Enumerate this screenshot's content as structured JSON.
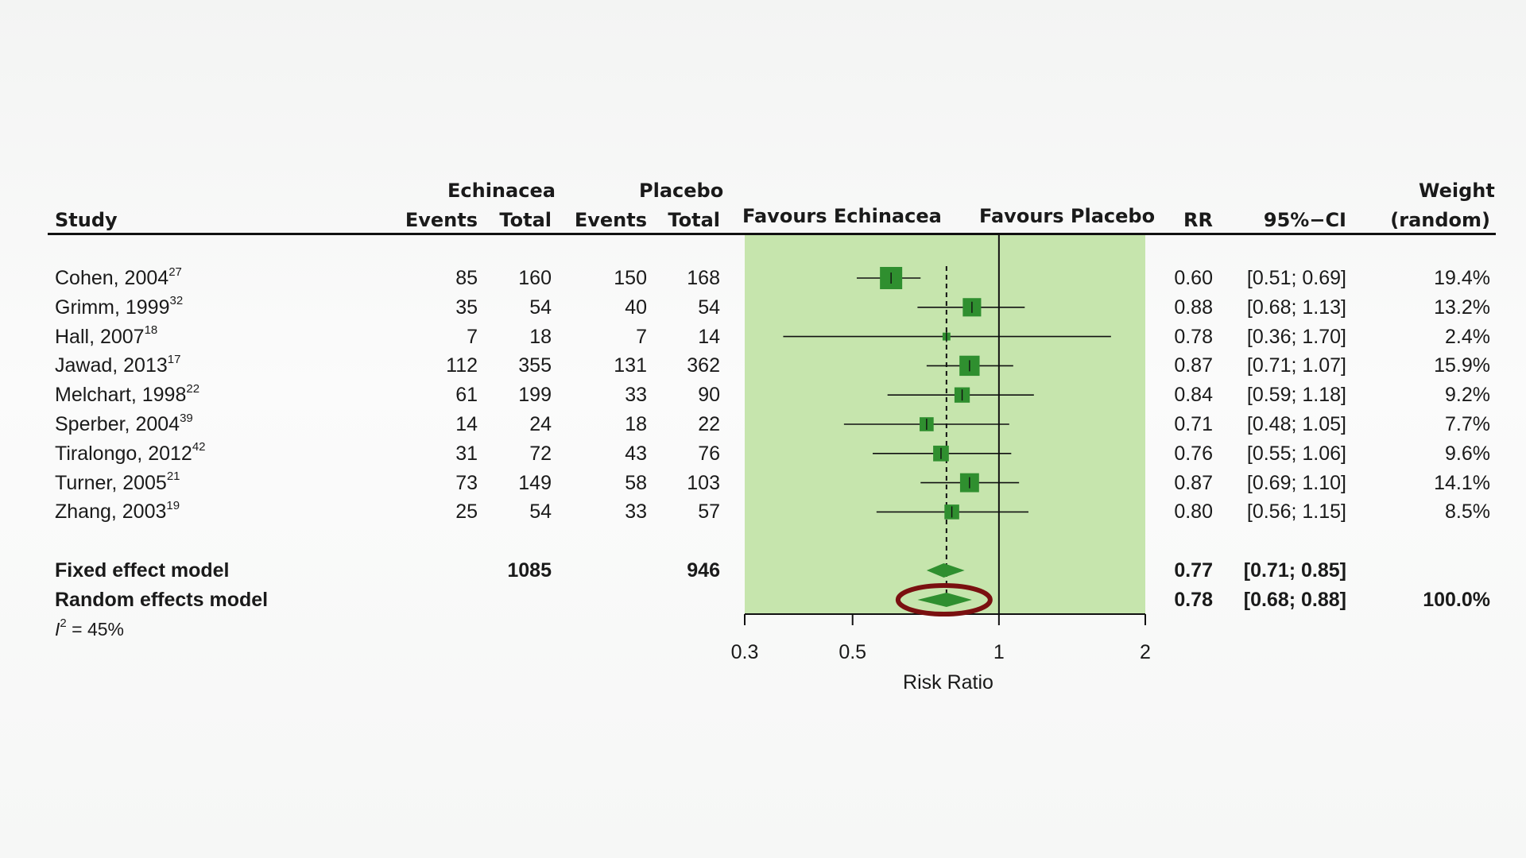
{
  "headers": {
    "study": "Study",
    "group1": "Echinacea",
    "group2": "Placebo",
    "events": "Events",
    "total": "Total",
    "favours_left": "Favours Echinacea",
    "favours_right": "Favours Placebo",
    "rr": "RR",
    "ci": "95%−CI",
    "weight_line1": "Weight",
    "weight_line2": "(random)"
  },
  "studies": [
    {
      "name": "Cohen, 2004",
      "ref": "27",
      "e_events": "85",
      "e_total": "160",
      "p_events": "150",
      "p_total": "168",
      "rr": "0.60",
      "ci": "[0.51; 0.69]",
      "weight": "19.4%"
    },
    {
      "name": "Grimm, 1999",
      "ref": "32",
      "e_events": "35",
      "e_total": "54",
      "p_events": "40",
      "p_total": "54",
      "rr": "0.88",
      "ci": "[0.68; 1.13]",
      "weight": "13.2%"
    },
    {
      "name": "Hall, 2007",
      "ref": "18",
      "e_events": "7",
      "e_total": "18",
      "p_events": "7",
      "p_total": "14",
      "rr": "0.78",
      "ci": "[0.36; 1.70]",
      "weight": "2.4%"
    },
    {
      "name": "Jawad, 2013",
      "ref": "17",
      "e_events": "112",
      "e_total": "355",
      "p_events": "131",
      "p_total": "362",
      "rr": "0.87",
      "ci": "[0.71; 1.07]",
      "weight": "15.9%"
    },
    {
      "name": "Melchart, 1998",
      "ref": "22",
      "e_events": "61",
      "e_total": "199",
      "p_events": "33",
      "p_total": "90",
      "rr": "0.84",
      "ci": "[0.59; 1.18]",
      "weight": "9.2%"
    },
    {
      "name": "Sperber, 2004",
      "ref": "39",
      "e_events": "14",
      "e_total": "24",
      "p_events": "18",
      "p_total": "22",
      "rr": "0.71",
      "ci": "[0.48; 1.05]",
      "weight": "7.7%"
    },
    {
      "name": "Tiralongo, 2012",
      "ref": "42",
      "e_events": "31",
      "e_total": "72",
      "p_events": "43",
      "p_total": "76",
      "rr": "0.76",
      "ci": "[0.55; 1.06]",
      "weight": "9.6%"
    },
    {
      "name": "Turner, 2005",
      "ref": "21",
      "e_events": "73",
      "e_total": "149",
      "p_events": "58",
      "p_total": "103",
      "rr": "0.87",
      "ci": "[0.69; 1.10]",
      "weight": "14.1%"
    },
    {
      "name": "Zhang, 2003",
      "ref": "19",
      "e_events": "25",
      "e_total": "54",
      "p_events": "33",
      "p_total": "57",
      "rr": "0.80",
      "ci": "[0.56; 1.15]",
      "weight": "8.5%"
    }
  ],
  "summary": {
    "fixed": {
      "label": "Fixed effect model",
      "e_total": "1085",
      "p_total": "946",
      "rr": "0.77",
      "ci": "[0.71; 0.85]",
      "weight": ""
    },
    "random": {
      "label": "Random effects model",
      "rr": "0.78",
      "ci": "[0.68; 0.88]",
      "weight": "100.0%"
    },
    "i2_symbol": "I",
    "i2_exp": "2",
    "i2_value": " = 45%"
  },
  "chart_data": {
    "type": "forest",
    "xlabel": "Risk Ratio",
    "x_scale": "log",
    "xlim": [
      0.3,
      2
    ],
    "ticks": [
      0.3,
      0.5,
      1,
      2
    ],
    "tick_labels": [
      "0.3",
      "0.5",
      "1",
      "2"
    ],
    "null_line": 1,
    "pooled_reference_line": 0.78,
    "studies": [
      {
        "name": "Cohen, 2004",
        "rr": 0.6,
        "lower": 0.51,
        "upper": 0.69,
        "weight": 19.4
      },
      {
        "name": "Grimm, 1999",
        "rr": 0.88,
        "lower": 0.68,
        "upper": 1.13,
        "weight": 13.2
      },
      {
        "name": "Hall, 2007",
        "rr": 0.78,
        "lower": 0.36,
        "upper": 1.7,
        "weight": 2.4
      },
      {
        "name": "Jawad, 2013",
        "rr": 0.87,
        "lower": 0.71,
        "upper": 1.07,
        "weight": 15.9
      },
      {
        "name": "Melchart, 1998",
        "rr": 0.84,
        "lower": 0.59,
        "upper": 1.18,
        "weight": 9.2
      },
      {
        "name": "Sperber, 2004",
        "rr": 0.71,
        "lower": 0.48,
        "upper": 1.05,
        "weight": 7.7
      },
      {
        "name": "Tiralongo, 2012",
        "rr": 0.76,
        "lower": 0.55,
        "upper": 1.06,
        "weight": 9.6
      },
      {
        "name": "Turner, 2005",
        "rr": 0.87,
        "lower": 0.69,
        "upper": 1.1,
        "weight": 14.1
      },
      {
        "name": "Zhang, 2003",
        "rr": 0.8,
        "lower": 0.56,
        "upper": 1.15,
        "weight": 8.5
      }
    ],
    "pooled": [
      {
        "name": "Fixed effect model",
        "rr": 0.77,
        "lower": 0.71,
        "upper": 0.85
      },
      {
        "name": "Random effects model",
        "rr": 0.78,
        "lower": 0.68,
        "upper": 0.88,
        "highlighted": true
      }
    ],
    "colors": {
      "panel": "#c6e5ad",
      "marker": "#2f8f2f",
      "line": "#111111",
      "highlight": "#7a1010"
    }
  }
}
